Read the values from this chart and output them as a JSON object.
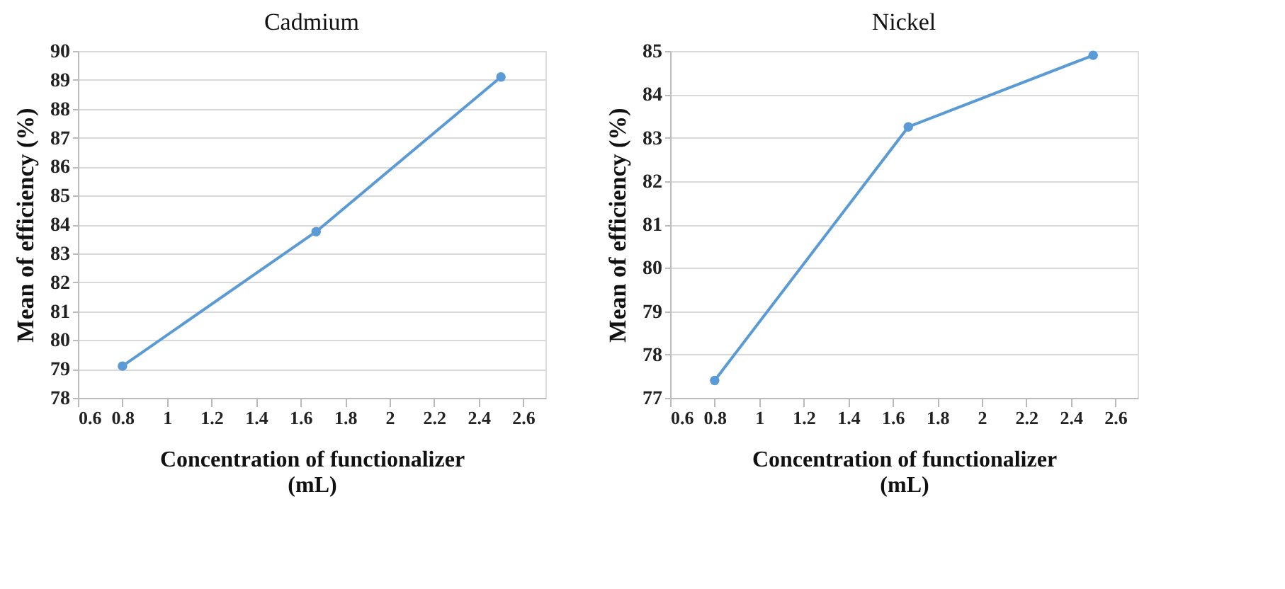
{
  "chart_data": [
    {
      "type": "line",
      "title": "Cadmium",
      "xlabel": "Concentration of functionalizer\n(mL)",
      "ylabel": "Mean of efficiency (%)",
      "x": [
        0.8,
        1.67,
        2.5
      ],
      "series": [
        {
          "color": "#5b9bd5",
          "values": [
            79.1,
            83.75,
            89.1
          ]
        }
      ],
      "xlim": [
        0.6,
        2.7
      ],
      "xticks": [
        0.6,
        0.8,
        1,
        1.2,
        1.4,
        1.6,
        1.8,
        2,
        2.2,
        2.4,
        2.6
      ],
      "ylim": [
        78,
        90
      ],
      "yticks": [
        78,
        79,
        80,
        81,
        82,
        83,
        84,
        85,
        86,
        87,
        88,
        89,
        90
      ],
      "grid": "y",
      "marker": "circle",
      "line_style": "solid"
    },
    {
      "type": "line",
      "title": "Nickel",
      "xlabel": "Concentration of functionalizer\n(mL)",
      "ylabel": "Mean of efficiency (%)",
      "x": [
        0.8,
        1.67,
        2.5
      ],
      "series": [
        {
          "color": "#5b9bd5",
          "values": [
            77.4,
            83.25,
            84.9
          ]
        }
      ],
      "xlim": [
        0.6,
        2.7
      ],
      "xticks": [
        0.6,
        0.8,
        1,
        1.2,
        1.4,
        1.6,
        1.8,
        2,
        2.2,
        2.4,
        2.6
      ],
      "ylim": [
        77,
        85
      ],
      "yticks": [
        77,
        78,
        79,
        80,
        81,
        82,
        83,
        84,
        85
      ],
      "grid": "y",
      "marker": "circle",
      "line_style": "solid"
    }
  ]
}
